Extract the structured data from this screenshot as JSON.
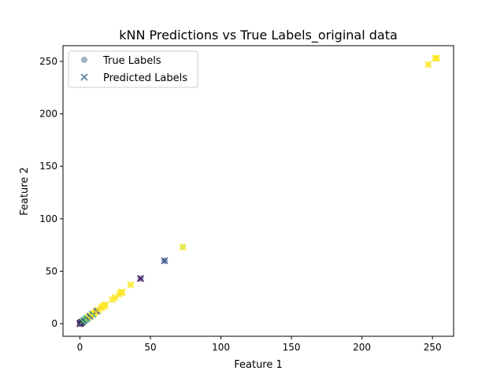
{
  "chart_data": {
    "type": "scatter",
    "title": "kNN Predictions vs True Labels_original data",
    "xlabel": "Feature 1",
    "ylabel": "Feature 2",
    "xlim": [
      -12,
      265
    ],
    "ylim": [
      -12,
      265
    ],
    "xticks": [
      0,
      50,
      100,
      150,
      200,
      250
    ],
    "yticks": [
      0,
      50,
      100,
      150,
      200,
      250
    ],
    "grid": false,
    "legend_position": "upper-left",
    "series": [
      {
        "name": "True Labels",
        "marker": "circle",
        "points": [
          {
            "x": 0,
            "y": 0,
            "color": "#440154"
          },
          {
            "x": 0.5,
            "y": 0.5,
            "color": "#3b528b"
          },
          {
            "x": 1,
            "y": 1,
            "color": "#21918c"
          },
          {
            "x": 1.5,
            "y": 1.5,
            "color": "#440154"
          },
          {
            "x": 2,
            "y": 2,
            "color": "#5ec962"
          },
          {
            "x": 3,
            "y": 3,
            "color": "#3b528b"
          },
          {
            "x": 4,
            "y": 4,
            "color": "#5ec962"
          },
          {
            "x": 5,
            "y": 5,
            "color": "#21918c"
          },
          {
            "x": 6,
            "y": 6,
            "color": "#fde725"
          },
          {
            "x": 7,
            "y": 7,
            "color": "#3b528b"
          },
          {
            "x": 8,
            "y": 8,
            "color": "#fde725"
          },
          {
            "x": 9,
            "y": 9,
            "color": "#21918c"
          },
          {
            "x": 10,
            "y": 10,
            "color": "#fde725"
          },
          {
            "x": 11,
            "y": 11,
            "color": "#fde725"
          },
          {
            "x": 12,
            "y": 12,
            "color": "#3b528b"
          },
          {
            "x": 13,
            "y": 13,
            "color": "#fde725"
          },
          {
            "x": 15,
            "y": 15,
            "color": "#fde725"
          },
          {
            "x": 16,
            "y": 16,
            "color": "#fde725"
          },
          {
            "x": 17,
            "y": 17,
            "color": "#fde725"
          },
          {
            "x": 18,
            "y": 18,
            "color": "#fde725"
          },
          {
            "x": 23,
            "y": 23,
            "color": "#fde725"
          },
          {
            "x": 25,
            "y": 25,
            "color": "#fde725"
          },
          {
            "x": 28,
            "y": 28,
            "color": "#fde725"
          },
          {
            "x": 29,
            "y": 30,
            "color": "#fde725"
          },
          {
            "x": 30,
            "y": 30,
            "color": "#fde725"
          },
          {
            "x": 36,
            "y": 37,
            "color": "#fde725"
          },
          {
            "x": 43,
            "y": 43,
            "color": "#3b528b"
          },
          {
            "x": 60,
            "y": 60,
            "color": "#3b528b"
          },
          {
            "x": 73,
            "y": 73,
            "color": "#b5de2b"
          },
          {
            "x": 247,
            "y": 247,
            "color": "#fde725"
          },
          {
            "x": 252,
            "y": 253,
            "color": "#fde725"
          },
          {
            "x": 253,
            "y": 253,
            "color": "#fde725"
          }
        ]
      },
      {
        "name": "Predicted Labels",
        "marker": "x",
        "points": [
          {
            "x": 0,
            "y": 0,
            "color": "#440154"
          },
          {
            "x": 0.5,
            "y": 0.5,
            "color": "#440154"
          },
          {
            "x": 1,
            "y": 1,
            "color": "#21918c"
          },
          {
            "x": 1.5,
            "y": 1.5,
            "color": "#440154"
          },
          {
            "x": 2,
            "y": 2,
            "color": "#5ec962"
          },
          {
            "x": 3,
            "y": 3,
            "color": "#3b528b"
          },
          {
            "x": 4,
            "y": 4,
            "color": "#5ec962"
          },
          {
            "x": 5,
            "y": 5,
            "color": "#21918c"
          },
          {
            "x": 6,
            "y": 6,
            "color": "#fde725"
          },
          {
            "x": 7,
            "y": 7,
            "color": "#3b528b"
          },
          {
            "x": 8,
            "y": 8,
            "color": "#fde725"
          },
          {
            "x": 9,
            "y": 9,
            "color": "#21918c"
          },
          {
            "x": 10,
            "y": 10,
            "color": "#fde725"
          },
          {
            "x": 11,
            "y": 11,
            "color": "#fde725"
          },
          {
            "x": 12,
            "y": 12,
            "color": "#3b528b"
          },
          {
            "x": 13,
            "y": 13,
            "color": "#fde725"
          },
          {
            "x": 15,
            "y": 15,
            "color": "#fde725"
          },
          {
            "x": 16,
            "y": 16,
            "color": "#fde725"
          },
          {
            "x": 17,
            "y": 17,
            "color": "#fde725"
          },
          {
            "x": 18,
            "y": 18,
            "color": "#fde725"
          },
          {
            "x": 23,
            "y": 23,
            "color": "#fde725"
          },
          {
            "x": 25,
            "y": 25,
            "color": "#fde725"
          },
          {
            "x": 28,
            "y": 28,
            "color": "#fde725"
          },
          {
            "x": 29,
            "y": 30,
            "color": "#fde725"
          },
          {
            "x": 30,
            "y": 30,
            "color": "#fde725"
          },
          {
            "x": 36,
            "y": 37,
            "color": "#fde725"
          },
          {
            "x": 43,
            "y": 43,
            "color": "#440154"
          },
          {
            "x": 60,
            "y": 60,
            "color": "#3b528b"
          },
          {
            "x": 73,
            "y": 73,
            "color": "#fde725"
          },
          {
            "x": 247,
            "y": 247,
            "color": "#fde725"
          },
          {
            "x": 252,
            "y": 253,
            "color": "#fde725"
          },
          {
            "x": 253,
            "y": 253,
            "color": "#fde725"
          }
        ]
      }
    ],
    "colors": {
      "legend_marker": "#5b7f9a",
      "axis": "#000000",
      "legend_border": "#cccccc"
    }
  }
}
